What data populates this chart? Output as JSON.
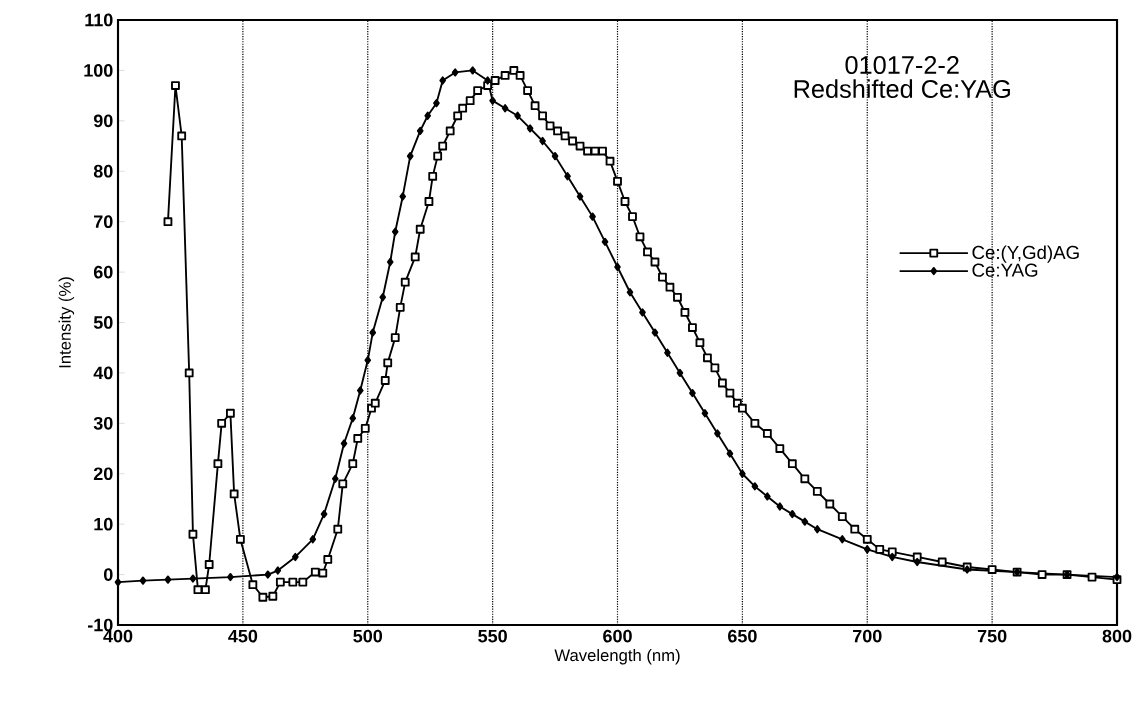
{
  "chart_data": {
    "type": "line",
    "title": "01017-2-2",
    "subtitle": "Redshifted Ce:YAG",
    "xlabel": "Wavelength (nm)",
    "ylabel": "Intensity (%)",
    "xlim": [
      400,
      800
    ],
    "ylim": [
      -10,
      110
    ],
    "xticks": [
      400,
      450,
      500,
      550,
      600,
      650,
      700,
      750,
      800
    ],
    "yticks": [
      -10,
      0,
      10,
      20,
      30,
      40,
      50,
      60,
      70,
      80,
      90,
      100,
      110
    ],
    "grid": "x",
    "legend": "right",
    "series": [
      {
        "name": "Ce:(Y,Gd)AG",
        "color": "#000000",
        "marker": "square",
        "x": [
          420,
          423,
          425.5,
          428.5,
          430,
          432,
          435,
          436.5,
          440,
          441.5,
          445,
          446.5,
          449,
          454,
          458,
          462,
          465,
          470,
          474,
          479,
          482,
          484,
          488,
          490,
          494,
          496,
          499,
          501.5,
          503,
          507,
          508,
          511,
          513,
          515,
          519,
          521,
          524.5,
          526,
          528,
          530,
          533,
          536,
          538,
          541,
          544,
          548,
          551,
          555,
          558.5,
          561,
          564,
          567,
          570,
          573,
          576,
          579,
          582,
          585,
          588,
          591,
          594,
          597,
          600,
          603,
          606,
          609,
          612,
          615,
          618,
          621,
          624,
          627,
          630,
          633,
          636,
          639,
          642,
          645,
          648,
          650,
          655,
          660,
          665,
          670,
          675,
          680,
          685,
          690,
          695,
          700,
          705,
          710,
          720,
          730,
          740,
          750,
          760,
          770,
          780,
          790,
          800
        ],
        "values": [
          70,
          97,
          87,
          40,
          8,
          -3,
          -3,
          2,
          22,
          30,
          32,
          16,
          7,
          -2,
          -4.5,
          -4.3,
          -1.5,
          -1.5,
          -1.5,
          0.5,
          0.3,
          3,
          9,
          18,
          22,
          27,
          29,
          33,
          34,
          38.5,
          42,
          47,
          53,
          58,
          63,
          68.5,
          74,
          79,
          83,
          85,
          88,
          91,
          92.5,
          94,
          96,
          97,
          98,
          99,
          100,
          99,
          96,
          93,
          91,
          89,
          88,
          87,
          86,
          85,
          84,
          84,
          84,
          82,
          78,
          74,
          71,
          67,
          64,
          62,
          59,
          57,
          55,
          52,
          49,
          46,
          43,
          41,
          38,
          36,
          34,
          33,
          30,
          28,
          25,
          22,
          19,
          16.5,
          14,
          11.5,
          9,
          7,
          5,
          4.5,
          3.5,
          2.5,
          1.5,
          1,
          0.5,
          0,
          0,
          -0.5,
          -1
        ]
      },
      {
        "name": "Ce:YAG",
        "color": "#000000",
        "marker": "diamond",
        "x": [
          400,
          410,
          420,
          430,
          445,
          460,
          464,
          471,
          478,
          482.5,
          487,
          490.5,
          494,
          497,
          500,
          502,
          506,
          509,
          511,
          514,
          517,
          521,
          524,
          527.5,
          530,
          535,
          542,
          548,
          550,
          555,
          560,
          565,
          570,
          575,
          580,
          585,
          590,
          595,
          600,
          605,
          610,
          615,
          620,
          625,
          630,
          635,
          640,
          645,
          650,
          655,
          660,
          665,
          670,
          675,
          680,
          690,
          700,
          710,
          720,
          740,
          760,
          780,
          800
        ],
        "values": [
          -1.5,
          -1.2,
          -1,
          -0.8,
          -0.5,
          0,
          0.8,
          3.5,
          7,
          12,
          19,
          26,
          31,
          36.5,
          42.5,
          48,
          55,
          62,
          68,
          75,
          83,
          88,
          91,
          93.5,
          98,
          99.6,
          100,
          98,
          94,
          92.5,
          91,
          88.5,
          86,
          83,
          79,
          75,
          71,
          66,
          61,
          56,
          52,
          48,
          44,
          40,
          36,
          32,
          28,
          24,
          20,
          17.5,
          15.5,
          13.5,
          12,
          10.5,
          9,
          7,
          5,
          3.5,
          2.5,
          1,
          0.5,
          0,
          -0.5
        ]
      }
    ]
  }
}
